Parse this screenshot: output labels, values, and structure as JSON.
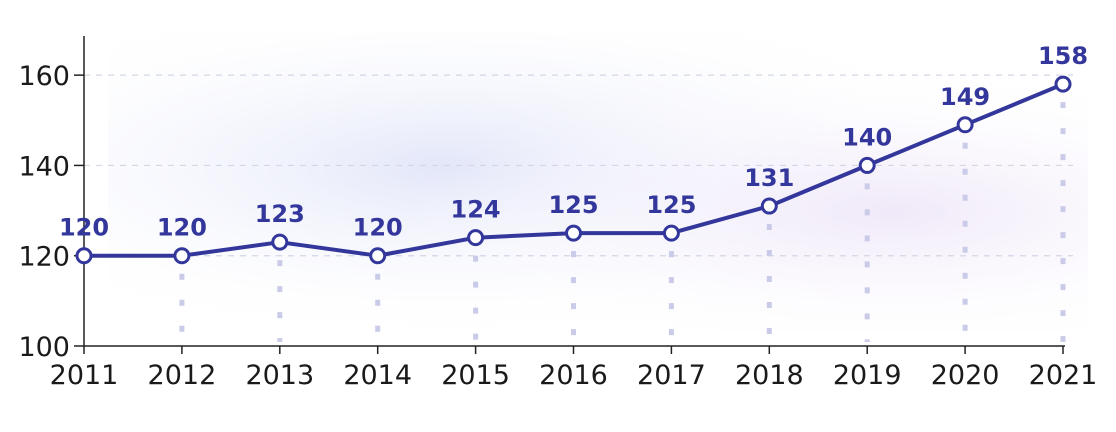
{
  "chart_data": {
    "type": "line",
    "title": "",
    "xlabel": "",
    "ylabel": "",
    "x": [
      "2011",
      "2012",
      "2013",
      "2014",
      "2015",
      "2016",
      "2017",
      "2018",
      "2019",
      "2020",
      "2021"
    ],
    "series": [
      {
        "values": [
          120,
          120,
          123,
          120,
          124,
          125,
          125,
          131,
          140,
          149,
          158
        ]
      }
    ],
    "ylim": [
      100,
      170
    ],
    "yticks": [
      "100",
      "120",
      "140",
      "160"
    ],
    "data_labels": [
      "120",
      "120",
      "123",
      "120",
      "124",
      "125",
      "125",
      "131",
      "140",
      "149",
      "158"
    ],
    "grid": "horizontal dashed",
    "colors": {
      "line": "#33379b",
      "marker_fill": "#ffffff",
      "label": "#33379b",
      "axis": "#222222",
      "dotted_drop": "#c9cbe8"
    }
  }
}
